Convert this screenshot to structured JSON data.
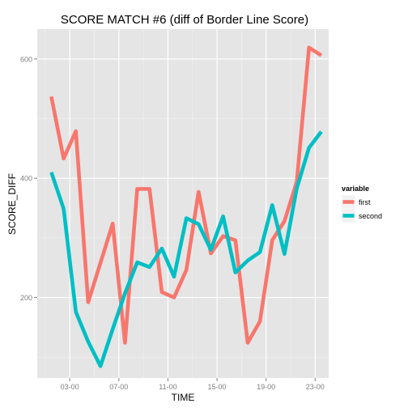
{
  "chart_data": {
    "type": "line",
    "title": "SCORE MATCH #6 (diff of Border Line Score)",
    "xlabel": "TIME",
    "ylabel": "SCORE_DIFF",
    "x_unit": "hour",
    "xlim": [
      0.35,
      24.1
    ],
    "ylim": [
      65,
      650
    ],
    "x_ticks": [
      {
        "value": 3,
        "label": "03-00"
      },
      {
        "value": 7,
        "label": "07-00"
      },
      {
        "value": 11,
        "label": "11-00"
      },
      {
        "value": 15,
        "label": "15-00"
      },
      {
        "value": 19,
        "label": "19-00"
      },
      {
        "value": 23,
        "label": "23-00"
      }
    ],
    "y_ticks": [
      200,
      400,
      600
    ],
    "grid": true,
    "legend_title": "variable",
    "legend_position": "right",
    "x": [
      1.5,
      2.5,
      3.5,
      4.5,
      5.5,
      6.5,
      7.5,
      8.5,
      9.5,
      10.5,
      11.5,
      12.5,
      13.5,
      14.5,
      15.5,
      16.5,
      17.5,
      18.5,
      19.5,
      20.5,
      21.5,
      22.5,
      23.5
    ],
    "series": [
      {
        "name": "first",
        "color": "#F8766D",
        "values": [
          537,
          433,
          479,
          192,
          258,
          324,
          124,
          382,
          382,
          209,
          200,
          246,
          377,
          274,
          303,
          296,
          124,
          160,
          296,
          328,
          394,
          619,
          606
        ]
      },
      {
        "name": "second",
        "color": "#00BFC4",
        "values": [
          410,
          349,
          176,
          126,
          85,
          147,
          207,
          259,
          251,
          282,
          235,
          333,
          323,
          280,
          336,
          242,
          262,
          276,
          355,
          273,
          383,
          451,
          478
        ]
      }
    ]
  }
}
